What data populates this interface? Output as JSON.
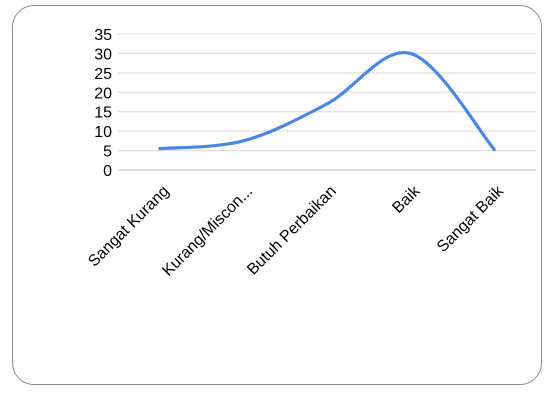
{
  "chart_data": {
    "type": "line",
    "categories": [
      "Sangat Kurang",
      "Kurang/Miscon...",
      "Butuh Perbaikan",
      "Baik",
      "Sangat Baik"
    ],
    "series": [
      {
        "values": [
          5.5,
          7.5,
          17,
          30,
          5.3
        ]
      }
    ],
    "ylim": [
      0,
      35
    ],
    "yticks": [
      0,
      5,
      10,
      15,
      20,
      25,
      30,
      35
    ],
    "grid": true,
    "smooth": true,
    "line_color": "#4a86e8"
  }
}
